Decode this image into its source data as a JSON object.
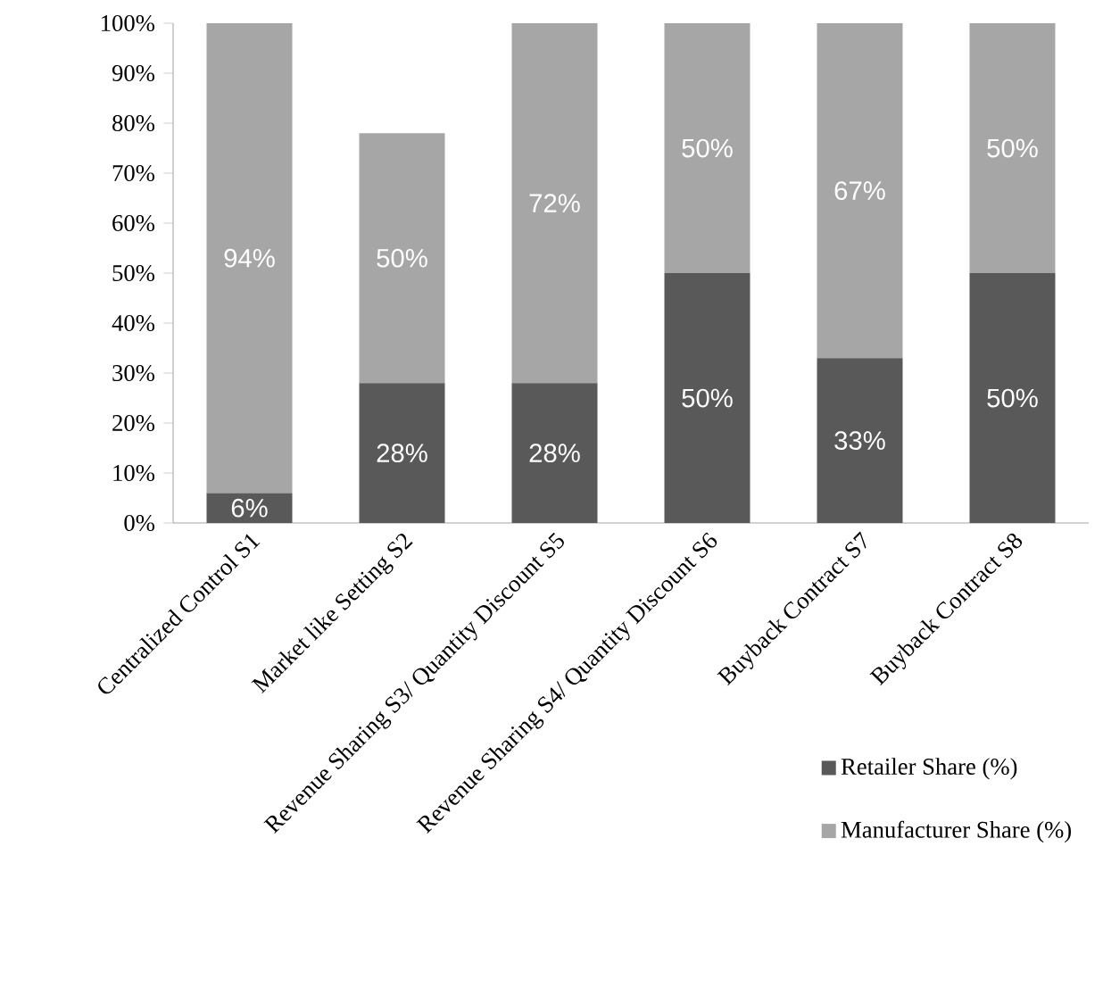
{
  "chart_data": {
    "type": "bar",
    "stacked": true,
    "categories": [
      "Centralized Control S1",
      "Market like Setting S2",
      "Revenue Sharing S3/ Quantity Discount S5",
      "Revenue Sharing S4/ Quantity Discount S6",
      "Buyback Contract S7",
      "Buyback Contract S8"
    ],
    "series": [
      {
        "name": "Retailer Share (%)",
        "color": "#595959",
        "values": [
          6,
          28,
          28,
          50,
          33,
          50
        ],
        "value_labels": [
          "6%",
          "28%",
          "28%",
          "50%",
          "33%",
          "50%"
        ]
      },
      {
        "name": "Manufacturer Share (%)",
        "color": "#a6a6a6",
        "values": [
          94,
          50,
          72,
          50,
          67,
          50
        ],
        "value_labels": [
          "94%",
          "50%",
          "72%",
          "50%",
          "67%",
          "50%"
        ]
      }
    ],
    "ylim": [
      0,
      100
    ],
    "yticks": [
      {
        "value": 0,
        "label": "0%"
      },
      {
        "value": 10,
        "label": "10%"
      },
      {
        "value": 20,
        "label": "20%"
      },
      {
        "value": 30,
        "label": "30%"
      },
      {
        "value": 40,
        "label": "40%"
      },
      {
        "value": 50,
        "label": "50%"
      },
      {
        "value": 60,
        "label": "60%"
      },
      {
        "value": 70,
        "label": "70%"
      },
      {
        "value": 80,
        "label": "80%"
      },
      {
        "value": 90,
        "label": "90%"
      },
      {
        "value": 100,
        "label": "100%"
      }
    ],
    "legend": "bottom right"
  }
}
